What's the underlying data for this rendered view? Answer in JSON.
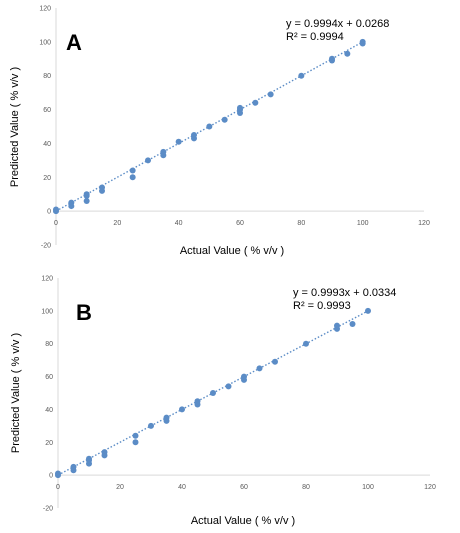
{
  "chart_data": [
    {
      "type": "scatter",
      "panel_label": "A",
      "xlabel": "Actual Value ( % v/v )",
      "ylabel": "Predicted Value ( % v/v )",
      "xlim": [
        0,
        120
      ],
      "ylim": [
        -20,
        120
      ],
      "x_ticks": [
        "0",
        "20",
        "40",
        "60",
        "80",
        "100",
        "120"
      ],
      "y_ticks": [
        "-20",
        "0",
        "20",
        "40",
        "60",
        "80",
        "100",
        "120"
      ],
      "grid": false,
      "trendline": {
        "slope": 0.9994,
        "intercept": 0.0268,
        "style": "dotted",
        "range": [
          0,
          100
        ]
      },
      "equation_text": "y = 0.9994x + 0.0268",
      "r2_text": "R² = 0.9994",
      "marker_color": "#5b8cc6",
      "trendline_color": "#5b8cc6",
      "points": [
        [
          0,
          0
        ],
        [
          0,
          1
        ],
        [
          5,
          3
        ],
        [
          5,
          5
        ],
        [
          10,
          6
        ],
        [
          10,
          9
        ],
        [
          10,
          10
        ],
        [
          15,
          12
        ],
        [
          15,
          14
        ],
        [
          25,
          20
        ],
        [
          25,
          24
        ],
        [
          30,
          30
        ],
        [
          35,
          33
        ],
        [
          35,
          35
        ],
        [
          40,
          41
        ],
        [
          45,
          43
        ],
        [
          45,
          45
        ],
        [
          50,
          50
        ],
        [
          55,
          54
        ],
        [
          60,
          58
        ],
        [
          60,
          60
        ],
        [
          60,
          61
        ],
        [
          65,
          64
        ],
        [
          70,
          69
        ],
        [
          80,
          80
        ],
        [
          90,
          89
        ],
        [
          90,
          90
        ],
        [
          95,
          93
        ],
        [
          100,
          99
        ],
        [
          100,
          100
        ]
      ]
    },
    {
      "type": "scatter",
      "panel_label": "B",
      "xlabel": "Actual Value ( % v/v )",
      "ylabel": "Predicted Value ( % v/v )",
      "xlim": [
        0,
        120
      ],
      "ylim": [
        -20,
        120
      ],
      "x_ticks": [
        "0",
        "20",
        "40",
        "60",
        "80",
        "100",
        "120"
      ],
      "y_ticks": [
        "-20",
        "0",
        "20",
        "40",
        "60",
        "80",
        "100",
        "120"
      ],
      "grid": false,
      "trendline": {
        "slope": 0.9993,
        "intercept": 0.0334,
        "style": "dotted",
        "range": [
          0,
          100
        ]
      },
      "equation_text": "y = 0.9993x + 0.0334",
      "r2_text": "R² = 0.9993",
      "marker_color": "#5b8cc6",
      "trendline_color": "#5b8cc6",
      "points": [
        [
          0,
          0
        ],
        [
          0,
          1
        ],
        [
          5,
          3
        ],
        [
          5,
          5
        ],
        [
          10,
          7
        ],
        [
          10,
          9
        ],
        [
          10,
          10
        ],
        [
          15,
          12
        ],
        [
          15,
          14
        ],
        [
          25,
          20
        ],
        [
          25,
          24
        ],
        [
          30,
          30
        ],
        [
          35,
          33
        ],
        [
          35,
          35
        ],
        [
          40,
          40
        ],
        [
          45,
          43
        ],
        [
          45,
          45
        ],
        [
          50,
          50
        ],
        [
          55,
          54
        ],
        [
          60,
          58
        ],
        [
          60,
          60
        ],
        [
          65,
          65
        ],
        [
          70,
          69
        ],
        [
          80,
          80
        ],
        [
          90,
          89
        ],
        [
          90,
          91
        ],
        [
          95,
          92
        ],
        [
          100,
          100
        ]
      ]
    }
  ]
}
